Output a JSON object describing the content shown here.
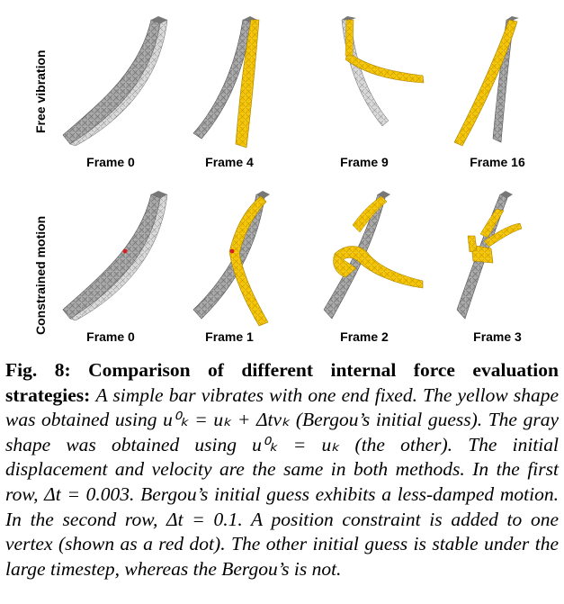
{
  "figure": {
    "rows": [
      {
        "label": "Free vibration",
        "frames": [
          "Frame 0",
          "Frame 4",
          "Frame 9",
          "Frame 16"
        ]
      },
      {
        "label": "Constrained motion",
        "frames": [
          "Frame 0",
          "Frame 1",
          "Frame 2",
          "Frame 3"
        ]
      }
    ],
    "colors": {
      "yellow_shape": "#f2c200",
      "gray_shape": "#9a9a9a",
      "gray_dark": "#5a5a5a",
      "constraint_dot": "#d42020"
    }
  },
  "caption": {
    "lead": "Fig. 8: Comparison of different internal force evaluation strategies:",
    "body": "A simple bar vibrates with one end fixed. The yellow shape was obtained using u⁰ₖ = uₖ + Δtvₖ (Bergou’s initial guess). The gray shape was obtained using u⁰ₖ = uₖ (the other). The initial displacement and velocity are the same in both methods. In the first row, Δt = 0.003. Bergou’s initial guess exhibits a less-damped motion. In the second row, Δt = 0.1. A position constraint is added to one vertex (shown as a red dot). The other initial guess is stable under the large timestep, whereas the Bergou’s is not."
  }
}
